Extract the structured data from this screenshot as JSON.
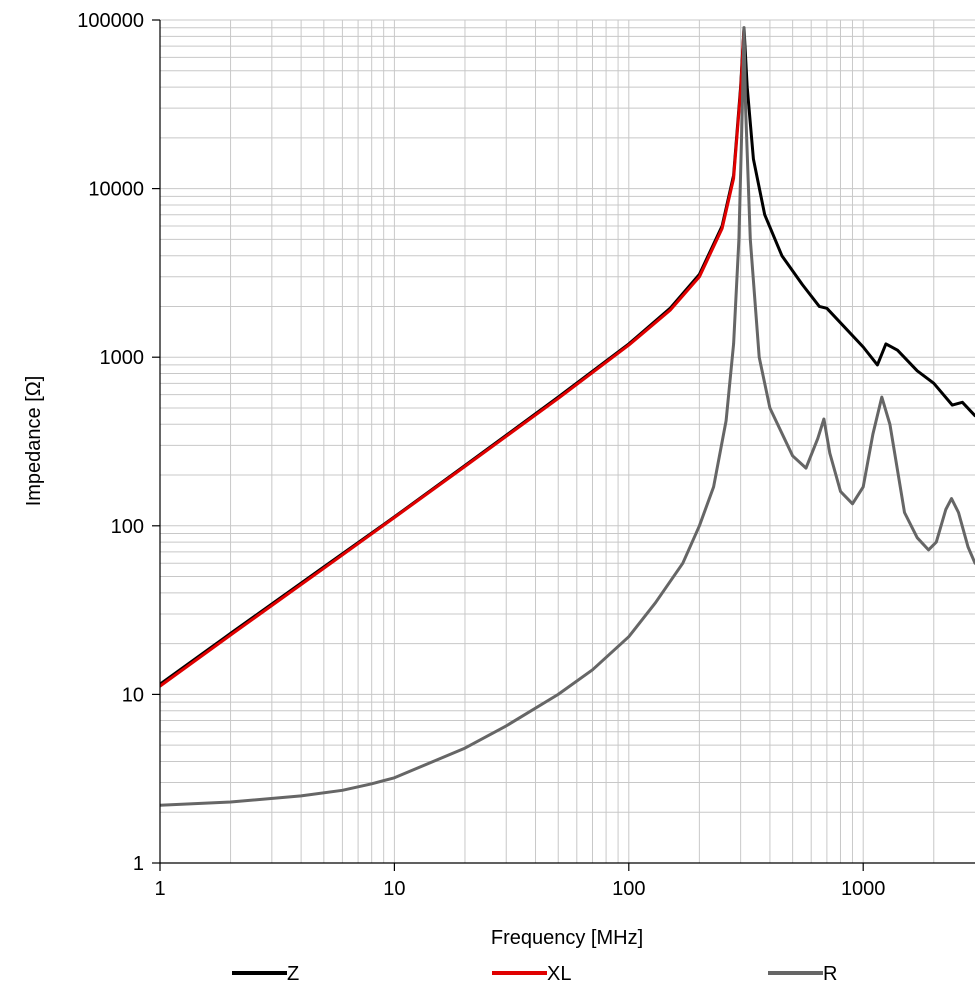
{
  "chart_data": {
    "type": "line",
    "title": "",
    "xlabel": "Frequency [MHz]",
    "ylabel": "Impedance [Ω]",
    "x_scale": "log",
    "y_scale": "log",
    "xlim": [
      1,
      3000
    ],
    "ylim": [
      1,
      100000
    ],
    "grid": true,
    "legend_position": "bottom",
    "x_ticks": [
      {
        "value": 1,
        "label": "1"
      },
      {
        "value": 10,
        "label": "10"
      },
      {
        "value": 100,
        "label": "100"
      },
      {
        "value": 1000,
        "label": "1000"
      }
    ],
    "y_ticks": [
      {
        "value": 1,
        "label": "1"
      },
      {
        "value": 10,
        "label": "10"
      },
      {
        "value": 100,
        "label": "100"
      },
      {
        "value": 1000,
        "label": "1000"
      },
      {
        "value": 10000,
        "label": "10000"
      },
      {
        "value": 100000,
        "label": "100000"
      }
    ],
    "series": [
      {
        "name": "Z",
        "color": "#000000",
        "points": [
          [
            1,
            11.5
          ],
          [
            2,
            23
          ],
          [
            5,
            57
          ],
          [
            10,
            113
          ],
          [
            20,
            228
          ],
          [
            50,
            580
          ],
          [
            100,
            1200
          ],
          [
            150,
            1950
          ],
          [
            200,
            3100
          ],
          [
            250,
            6000
          ],
          [
            280,
            12000
          ],
          [
            300,
            40000
          ],
          [
            310,
            90000
          ],
          [
            320,
            40000
          ],
          [
            340,
            15000
          ],
          [
            380,
            7000
          ],
          [
            450,
            4000
          ],
          [
            550,
            2700
          ],
          [
            650,
            2000
          ],
          [
            700,
            1950
          ],
          [
            800,
            1600
          ],
          [
            1000,
            1150
          ],
          [
            1150,
            900
          ],
          [
            1250,
            1200
          ],
          [
            1400,
            1100
          ],
          [
            1700,
            830
          ],
          [
            2000,
            700
          ],
          [
            2400,
            520
          ],
          [
            2650,
            540
          ],
          [
            3000,
            450
          ]
        ]
      },
      {
        "name": "XL",
        "color": "#e00000",
        "points": [
          [
            1,
            11.2
          ],
          [
            2,
            22.5
          ],
          [
            5,
            56
          ],
          [
            10,
            112
          ],
          [
            20,
            225
          ],
          [
            50,
            570
          ],
          [
            100,
            1180
          ],
          [
            150,
            1900
          ],
          [
            200,
            3000
          ],
          [
            250,
            5800
          ],
          [
            280,
            11500
          ],
          [
            300,
            38000
          ],
          [
            310,
            88000
          ]
        ]
      },
      {
        "name": "R",
        "color": "#666666",
        "points": [
          [
            1,
            2.2
          ],
          [
            2,
            2.3
          ],
          [
            4,
            2.5
          ],
          [
            6,
            2.7
          ],
          [
            8,
            2.95
          ],
          [
            10,
            3.2
          ],
          [
            20,
            4.8
          ],
          [
            30,
            6.5
          ],
          [
            50,
            10
          ],
          [
            70,
            14
          ],
          [
            100,
            22
          ],
          [
            130,
            35
          ],
          [
            170,
            60
          ],
          [
            200,
            100
          ],
          [
            230,
            170
          ],
          [
            260,
            420
          ],
          [
            280,
            1200
          ],
          [
            295,
            5000
          ],
          [
            305,
            30000
          ],
          [
            310,
            90000
          ],
          [
            315,
            30000
          ],
          [
            330,
            5000
          ],
          [
            360,
            1000
          ],
          [
            400,
            500
          ],
          [
            500,
            260
          ],
          [
            570,
            220
          ],
          [
            640,
            330
          ],
          [
            680,
            430
          ],
          [
            720,
            270
          ],
          [
            800,
            160
          ],
          [
            900,
            135
          ],
          [
            1000,
            170
          ],
          [
            1100,
            350
          ],
          [
            1200,
            580
          ],
          [
            1300,
            400
          ],
          [
            1500,
            120
          ],
          [
            1700,
            85
          ],
          [
            1900,
            72
          ],
          [
            2050,
            80
          ],
          [
            2250,
            125
          ],
          [
            2380,
            145
          ],
          [
            2550,
            120
          ],
          [
            2800,
            75
          ],
          [
            3000,
            60
          ]
        ]
      }
    ]
  }
}
